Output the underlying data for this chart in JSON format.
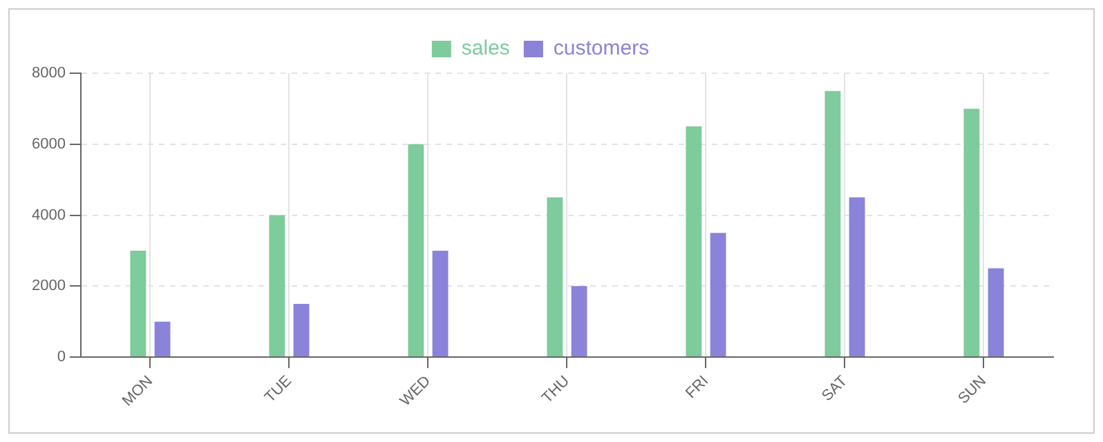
{
  "chart_data": {
    "type": "bar",
    "categories": [
      "MON",
      "TUE",
      "WED",
      "THU",
      "FRI",
      "SAT",
      "SUN"
    ],
    "series": [
      {
        "name": "sales",
        "color": "#7ecb9c",
        "values": [
          3000,
          4000,
          6000,
          4500,
          6500,
          7500,
          7000
        ]
      },
      {
        "name": "customers",
        "color": "#8a83d9",
        "values": [
          1000,
          1500,
          3000,
          2000,
          3500,
          4500,
          2500
        ]
      }
    ],
    "ylim": [
      0,
      8000
    ],
    "yticks": [
      0,
      2000,
      4000,
      6000,
      8000
    ],
    "grid": true,
    "legend": "top"
  }
}
